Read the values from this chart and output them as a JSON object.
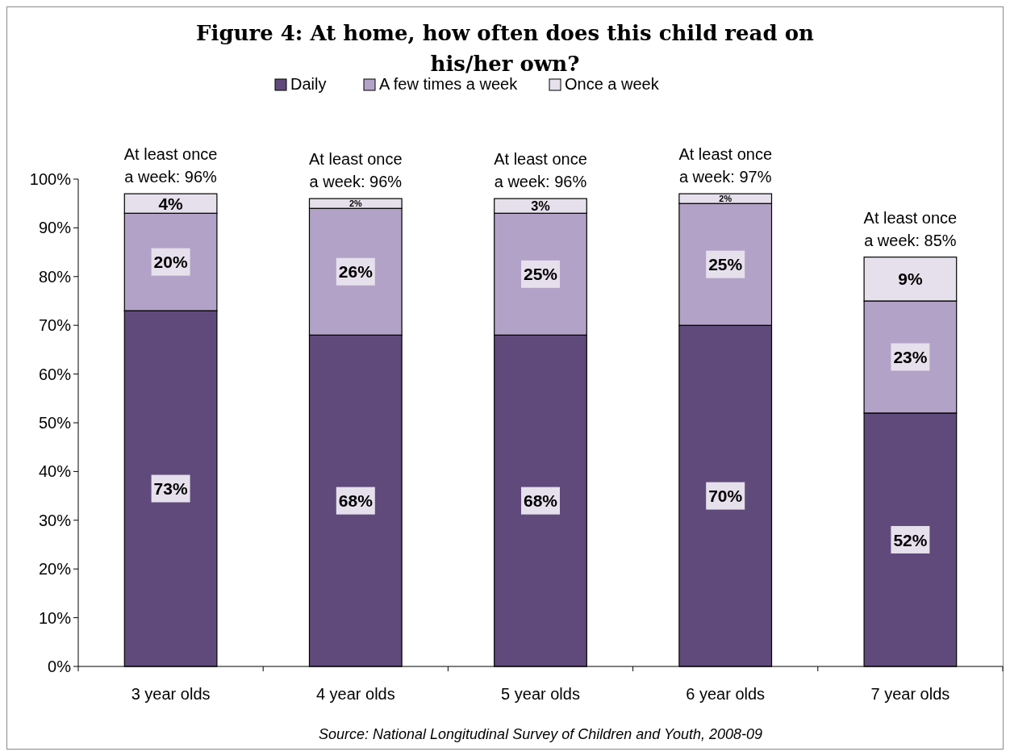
{
  "chart_data": {
    "type": "bar",
    "stacked": true,
    "title": "Figure 4: At home, how often does this child read on his/her own?",
    "categories": [
      "3 year olds",
      "4 year olds",
      "5 year olds",
      "6 year olds",
      "7 year olds"
    ],
    "series": [
      {
        "name": "Daily",
        "color": "#604a7b",
        "values": [
          73,
          68,
          68,
          70,
          52
        ]
      },
      {
        "name": "A few times a week",
        "color": "#b3a2c7",
        "values": [
          20,
          26,
          25,
          25,
          23
        ]
      },
      {
        "name": "Once a week",
        "color": "#e6e0ec",
        "values": [
          4,
          2,
          3,
          2,
          9
        ]
      }
    ],
    "ylim": [
      0,
      100
    ],
    "yticks": [
      {
        "value": 0,
        "label": "0%"
      },
      {
        "value": 10,
        "label": "10%"
      },
      {
        "value": 20,
        "label": "20%"
      },
      {
        "value": 30,
        "label": "30%"
      },
      {
        "value": 40,
        "label": "40%"
      },
      {
        "value": 50,
        "label": "50%"
      },
      {
        "value": 60,
        "label": "60%"
      },
      {
        "value": 70,
        "label": "70%"
      },
      {
        "value": 80,
        "label": "80%"
      },
      {
        "value": 90,
        "label": "90%"
      },
      {
        "value": 100,
        "label": "100%"
      }
    ],
    "value_labels": [
      [
        "73%",
        "68%",
        "68%",
        "70%",
        "52%"
      ],
      [
        "20%",
        "26%",
        "25%",
        "25%",
        "23%"
      ],
      [
        "4%",
        "2%",
        "3%",
        "2%",
        "9%"
      ]
    ],
    "annotations": [
      "At least once a week: 96%",
      "At least once a week: 96%",
      "At least once a week: 96%",
      "At least once a week: 97%",
      "At least once a week: 85%",
      "Source: National Longitudinal Survey of Children and Youth, 2008-09"
    ],
    "legend": "top",
    "grid": false
  }
}
